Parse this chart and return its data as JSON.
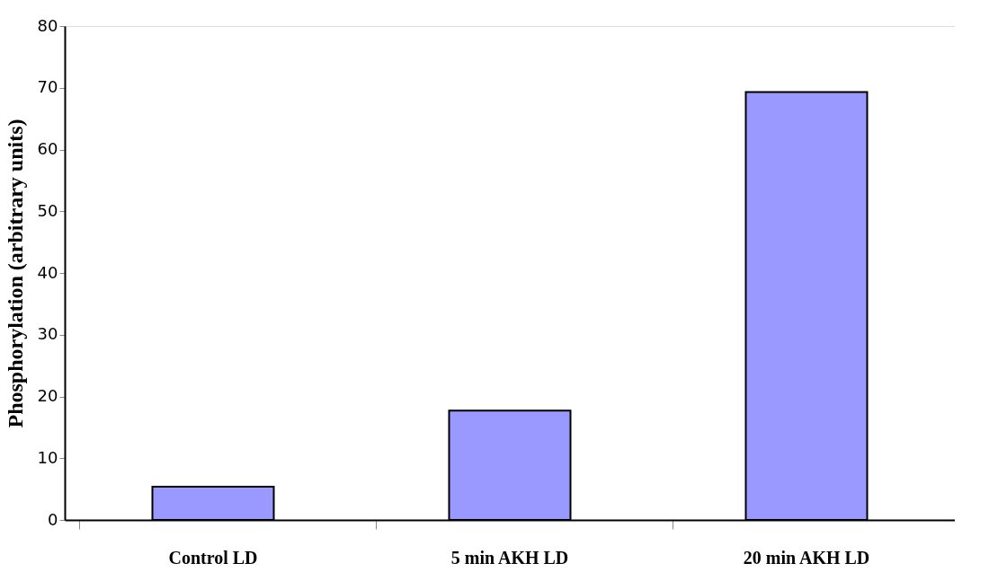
{
  "chart_data": {
    "type": "bar",
    "ylabel": "Phosphorylation (arbitrary units)",
    "categories": [
      "Control LD",
      "5 min AKH LD",
      "20 min AKH LD"
    ],
    "values": [
      5.4,
      17.7,
      69.3
    ],
    "color": "#9999ff",
    "ylim": [
      0,
      80
    ],
    "yticks": [
      0,
      10,
      20,
      30,
      40,
      50,
      60,
      70,
      80
    ],
    "grid": false
  }
}
